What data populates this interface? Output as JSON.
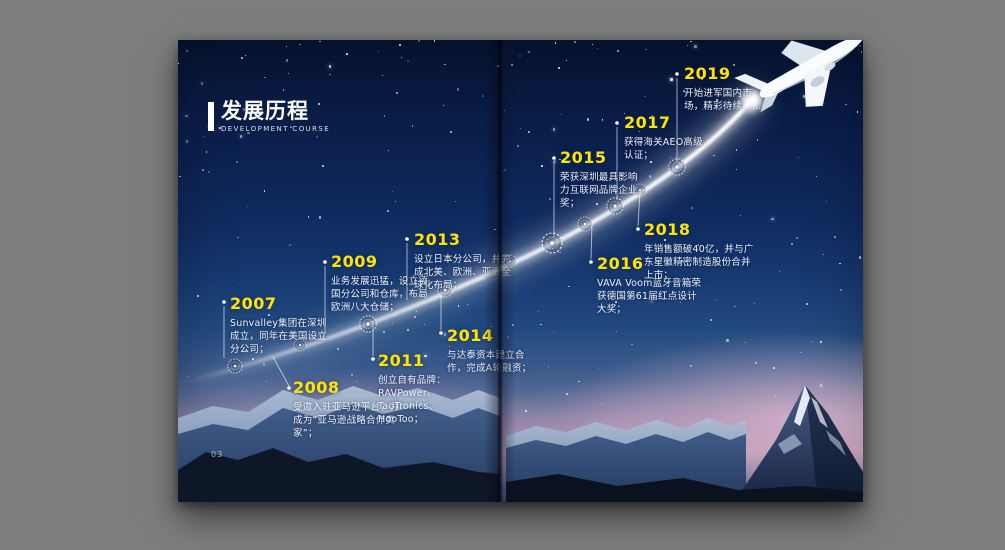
{
  "page": {
    "title": "发展历程",
    "subtitle": "DEVELOPMENT COURSE",
    "page_number": "03"
  },
  "colors": {
    "accent_yellow": "#ffe400",
    "sky_deep": "#0a1d49",
    "horizon_pink": "#b293ac",
    "trail_white": "#ffffff",
    "backdrop_gray": "#7d7d7d"
  },
  "icons": {
    "airplane-icon": "✈",
    "snowflake-medallion-icon": "❊"
  },
  "timeline": [
    {
      "year": "2007",
      "desc": "Sunvalley集团在深圳成立，同年在美国设立分公司；"
    },
    {
      "year": "2008",
      "desc": "受邀入驻亚马逊平台，并成为“亚马逊战略合作卖家”；"
    },
    {
      "year": "2009",
      "desc": "业务发展迅猛，设立德国分公司和仓库，布局欧洲八大仓储；"
    },
    {
      "year": "2011",
      "desc": "创立自有品牌：RAVPower、TaoTronics、HooToo；"
    },
    {
      "year": "2013",
      "desc": "设立日本分公司，并完成北美、欧洲、亚洲全球化布局；"
    },
    {
      "year": "2014",
      "desc": "与达泰资本建立合作，完成A轮融资；"
    },
    {
      "year": "2015",
      "desc": "荣获深圳最具影响力互联网品牌企业奖；"
    },
    {
      "year": "2016",
      "desc": "VAVA Voom蓝牙音箱荣获德国第61届红点设计大奖；"
    },
    {
      "year": "2017",
      "desc": "获得海关AEO高级认证；"
    },
    {
      "year": "2018",
      "desc": "年销售额破40亿，并与广东星徽精密制造股份合并上市；"
    },
    {
      "year": "2019",
      "desc": "开始进军国内市场，精彩待续……"
    }
  ]
}
